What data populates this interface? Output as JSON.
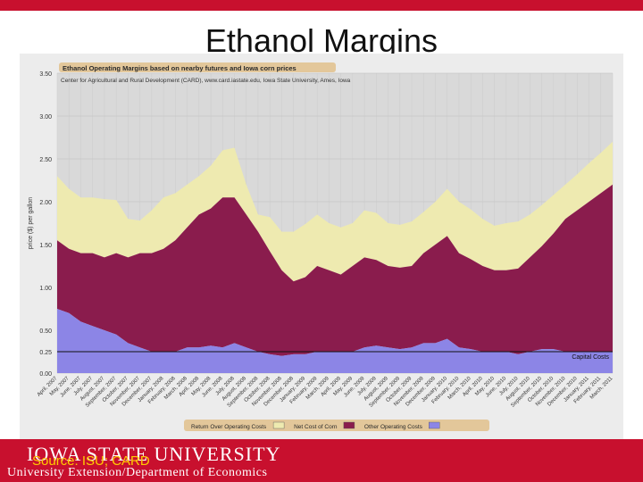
{
  "slide": {
    "title": "Ethanol Margins",
    "university": "IOWA STATE UNIVERSITY",
    "source": "Source: ISU; CARD",
    "department": "University Extension/Department of Economics"
  },
  "colors": {
    "slide_red": "#c8102e",
    "chart_bg": "#d9d9d9",
    "return_fill": "#eeeab0",
    "net_corn_fill": "#8a1c4d",
    "other_costs_fill": "#8c85e6",
    "source_yellow": "#ffcc00"
  },
  "chart_data": {
    "type": "area",
    "stacked": true,
    "title": "Ethanol Operating Margins based on nearby futures and Iowa corn prices",
    "subtitle": "Center for Agricultural and Rural Development (CARD), www.card.iastate.edu, Iowa State University, Ames, Iowa",
    "ylabel": "price ($) per gallon",
    "ylim": [
      0,
      3.5
    ],
    "yticks": [
      "3.50",
      "3.00",
      "2.50",
      "2.00",
      "1.50",
      "1.00",
      "0.50",
      "0.25",
      "0.00"
    ],
    "xticks": [
      "April, 2007",
      "May, 2007",
      "June, 2007",
      "July, 2007",
      "August, 2007",
      "September, 2007",
      "October, 2007",
      "November, 2007",
      "December, 2007",
      "January, 2008",
      "February, 2008",
      "March, 2008",
      "April, 2008",
      "May, 2008",
      "June, 2008",
      "July, 2008",
      "August, 2008",
      "September, 2008",
      "October, 2008",
      "November, 2008",
      "December, 2008",
      "January, 2009",
      "February, 2009",
      "March, 2009",
      "April, 2009",
      "May, 2009",
      "June, 2009",
      "July, 2009",
      "August, 2009",
      "September, 2009",
      "October, 2009",
      "November, 2009",
      "December, 2009",
      "January, 2010",
      "February, 2010",
      "March, 2010",
      "April, 2010",
      "May, 2010",
      "June, 2010",
      "July, 2010",
      "August, 2010",
      "September, 2010",
      "October, 2010",
      "November, 2010",
      "December, 2010",
      "January, 2011",
      "February, 2011",
      "March, 2011"
    ],
    "series": [
      {
        "name": "Return Over Operating Costs",
        "color": "#eeeab0",
        "values": [
          0.75,
          0.7,
          0.65,
          0.65,
          0.68,
          0.62,
          0.45,
          0.38,
          0.5,
          0.6,
          0.55,
          0.5,
          0.45,
          0.5,
          0.55,
          0.58,
          0.35,
          0.2,
          0.4,
          0.45,
          0.58,
          0.62,
          0.6,
          0.55,
          0.55,
          0.5,
          0.55,
          0.55,
          0.5,
          0.5,
          0.52,
          0.48,
          0.5,
          0.55,
          0.6,
          0.58,
          0.55,
          0.52,
          0.55,
          0.55,
          0.5,
          0.48,
          0.45,
          0.4,
          0.42,
          0.45,
          0.47,
          0.5
        ]
      },
      {
        "name": "Net Cost of Corn",
        "color": "#8a1c4d",
        "values": [
          0.8,
          0.75,
          0.8,
          0.85,
          0.85,
          0.95,
          1.0,
          1.1,
          1.15,
          1.2,
          1.3,
          1.4,
          1.55,
          1.6,
          1.75,
          1.7,
          1.55,
          1.4,
          1.2,
          1.0,
          0.85,
          0.9,
          1.0,
          0.95,
          0.9,
          1.0,
          1.05,
          1.0,
          0.95,
          0.95,
          0.95,
          1.05,
          1.15,
          1.2,
          1.1,
          1.05,
          1.0,
          0.95,
          0.95,
          1.0,
          1.1,
          1.2,
          1.35,
          1.55,
          1.65,
          1.75,
          1.85,
          1.95
        ]
      },
      {
        "name": "Other Operating Costs",
        "color": "#8c85e6",
        "values": [
          0.75,
          0.7,
          0.6,
          0.55,
          0.5,
          0.45,
          0.35,
          0.3,
          0.25,
          0.25,
          0.25,
          0.3,
          0.3,
          0.32,
          0.3,
          0.35,
          0.3,
          0.25,
          0.22,
          0.2,
          0.22,
          0.22,
          0.25,
          0.25,
          0.25,
          0.25,
          0.3,
          0.32,
          0.3,
          0.28,
          0.3,
          0.35,
          0.35,
          0.4,
          0.3,
          0.28,
          0.25,
          0.25,
          0.25,
          0.22,
          0.25,
          0.28,
          0.28,
          0.25,
          0.25,
          0.25,
          0.25,
          0.25
        ]
      }
    ],
    "reference_line": {
      "value": 0.25,
      "label": "Capital Costs"
    },
    "legend_position": "bottom",
    "grid": true
  }
}
